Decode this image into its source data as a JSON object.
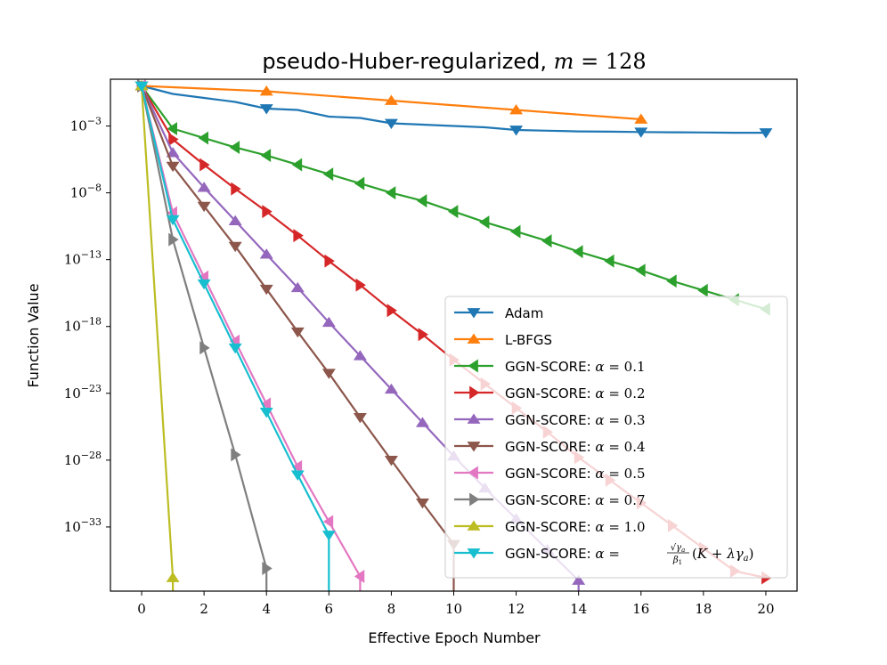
{
  "chart_data": {
    "type": "line",
    "title": "pseudo-Huber-regularized, m = 128",
    "title_parts": {
      "text": "pseudo-Huber-regularized, ",
      "var": "m",
      "eq": " = 128"
    },
    "xlabel": "Effective Epoch Number",
    "ylabel": "Function Value",
    "y_scale": "log",
    "xlim": [
      -1,
      21
    ],
    "ylim_exponent": [
      -37.8,
      0.5
    ],
    "x_ticks": [
      0,
      2,
      4,
      6,
      8,
      10,
      12,
      14,
      16,
      18,
      20
    ],
    "y_tick_exponents": [
      -3,
      -8,
      -13,
      -18,
      -23,
      -28,
      -33
    ],
    "y_tick_base": "10",
    "legend_position": "lower-right",
    "series": [
      {
        "name": "Adam",
        "color": "#1f77b4",
        "marker": "triangle-down",
        "legend_alpha": "",
        "x": [
          0,
          1,
          2,
          3,
          4,
          5,
          6,
          7,
          8,
          9,
          10,
          11,
          12,
          13,
          14,
          15,
          16,
          17,
          18,
          19,
          20
        ],
        "log10_y": [
          0,
          -0.6,
          -0.9,
          -1.2,
          -1.7,
          -1.8,
          -2.3,
          -2.4,
          -2.8,
          -2.9,
          -3.0,
          -3.1,
          -3.3,
          -3.35,
          -3.4,
          -3.42,
          -3.45,
          -3.47,
          -3.48,
          -3.5,
          -3.5
        ],
        "marker_x": [
          0,
          4,
          8,
          12,
          16,
          20
        ]
      },
      {
        "name": "L-BFGS",
        "color": "#ff7f0e",
        "marker": "triangle-up",
        "legend_alpha": "",
        "x": [
          0,
          4,
          8,
          12,
          16
        ],
        "log10_y": [
          0,
          -0.4,
          -1.1,
          -1.8,
          -2.5
        ],
        "marker_x": [
          0,
          4,
          8,
          12,
          16
        ]
      },
      {
        "name": "GGN-SCORE",
        "color": "#2ca02c",
        "marker": "triangle-left",
        "legend_alpha": "0.1",
        "x": [
          0,
          1,
          2,
          3,
          4,
          5,
          6,
          7,
          8,
          9,
          10,
          11,
          12,
          13,
          14,
          15,
          16,
          17,
          18,
          19,
          20
        ],
        "log10_y": [
          0,
          -3.2,
          -3.9,
          -4.6,
          -5.2,
          -5.9,
          -6.6,
          -7.3,
          -8.0,
          -8.6,
          -9.4,
          -10.2,
          -10.9,
          -11.6,
          -12.4,
          -13.1,
          -13.8,
          -14.6,
          -15.3,
          -16.0,
          -16.7
        ],
        "marker_x": [
          0,
          1,
          2,
          3,
          4,
          5,
          6,
          7,
          8,
          9,
          10,
          11,
          12,
          13,
          14,
          15,
          16,
          17,
          18,
          19,
          20
        ]
      },
      {
        "name": "GGN-SCORE",
        "color": "#d62728",
        "marker": "triangle-right",
        "legend_alpha": "0.2",
        "x": [
          0,
          1,
          2,
          3,
          4,
          5,
          6,
          7,
          8,
          9,
          10,
          11,
          12,
          13,
          14,
          15,
          16,
          17,
          18,
          19,
          20
        ],
        "log10_y": [
          0,
          -4.0,
          -5.9,
          -7.7,
          -9.4,
          -11.2,
          -13.1,
          -14.9,
          -16.8,
          -18.6,
          -20.5,
          -22.3,
          -24.1,
          -25.9,
          -27.8,
          -29.5,
          -31.2,
          -32.9,
          -34.6,
          -36.3,
          -36.8
        ],
        "marker_x": [
          0,
          1,
          2,
          3,
          4,
          5,
          6,
          7,
          8,
          9,
          10,
          11,
          12,
          13,
          14,
          15,
          16,
          17,
          18,
          19,
          20
        ]
      },
      {
        "name": "GGN-SCORE",
        "color": "#9467bd",
        "marker": "triangle-up",
        "legend_alpha": "0.3",
        "x": [
          0,
          1,
          2,
          3,
          4,
          5,
          6,
          7,
          8,
          9,
          10,
          11,
          12,
          13,
          14,
          14
        ],
        "log10_y": [
          0,
          -5.0,
          -7.6,
          -10.1,
          -12.6,
          -15.1,
          -17.7,
          -20.2,
          -22.7,
          -25.2,
          -27.7,
          -30.1,
          -32.4,
          -34.7,
          -37.0,
          -37.8
        ],
        "marker_x": [
          0,
          1,
          2,
          3,
          4,
          5,
          6,
          7,
          8,
          9,
          10,
          11,
          12,
          13,
          14
        ]
      },
      {
        "name": "GGN-SCORE",
        "color": "#8c564b",
        "marker": "triangle-down",
        "legend_alpha": "0.4",
        "x": [
          0,
          1,
          2,
          3,
          4,
          5,
          6,
          7,
          8,
          9,
          10,
          10
        ],
        "log10_y": [
          0,
          -6.0,
          -9.0,
          -12.0,
          -15.2,
          -18.4,
          -21.5,
          -24.8,
          -28.0,
          -31.2,
          -34.3,
          -37.8
        ],
        "marker_x": [
          0,
          1,
          2,
          3,
          4,
          5,
          6,
          7,
          8,
          9,
          10
        ]
      },
      {
        "name": "GGN-SCORE",
        "color": "#e377c2",
        "marker": "triangle-left",
        "legend_alpha": "0.5",
        "x": [
          0,
          1,
          2,
          3,
          4,
          5,
          6,
          7,
          7
        ],
        "log10_y": [
          0,
          -9.5,
          -14.3,
          -19.1,
          -23.8,
          -28.5,
          -32.6,
          -36.7,
          -37.8
        ],
        "marker_x": [
          0,
          1,
          2,
          3,
          4,
          5,
          6,
          7
        ]
      },
      {
        "name": "GGN-SCORE",
        "color": "#7f7f7f",
        "marker": "triangle-right",
        "legend_alpha": "0.7",
        "x": [
          0,
          1,
          2,
          3,
          4,
          4
        ],
        "log10_y": [
          0,
          -11.5,
          -19.6,
          -27.6,
          -36.1,
          -37.8
        ],
        "marker_x": [
          0,
          1,
          2,
          3,
          4
        ]
      },
      {
        "name": "GGN-SCORE",
        "color": "#bcbd22",
        "marker": "triangle-up",
        "legend_alpha": "1.0",
        "x": [
          0,
          1,
          1
        ],
        "log10_y": [
          0,
          -36.8,
          -37.8
        ],
        "marker_x": [
          0,
          1
        ]
      },
      {
        "name": "GGN-SCORE",
        "color": "#17becf",
        "marker": "triangle-down",
        "legend_alpha": "formula",
        "x": [
          0,
          1,
          2,
          3,
          4,
          5,
          6,
          6
        ],
        "log10_y": [
          0,
          -10.0,
          -14.8,
          -19.6,
          -24.4,
          -29.1,
          -33.6,
          -37.8
        ],
        "marker_x": [
          0,
          1,
          2,
          3,
          4,
          5,
          6
        ]
      }
    ],
    "legend_formula": {
      "prefix": "GGN-SCORE: ",
      "alpha": "α",
      "eq": " = ",
      "num_root": "γ",
      "num_sub": "a",
      "den": "β",
      "den_sub": "1",
      "paren_open": "(",
      "K": "K",
      "plus": " + ",
      "lambda": "λ",
      "gamma": "γ",
      "gamma_sub": "a",
      "paren_close": ")"
    }
  }
}
